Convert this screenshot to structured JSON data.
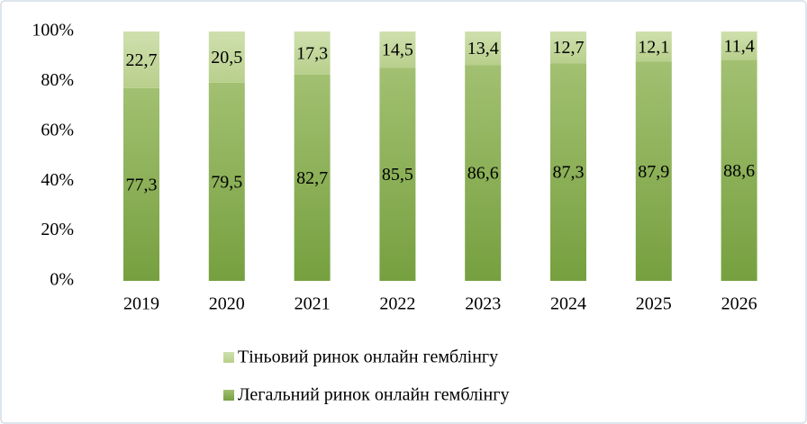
{
  "chart_data": {
    "type": "stacked_bar",
    "categories": [
      "2019",
      "2020",
      "2021",
      "2022",
      "2023",
      "2024",
      "2025",
      "2026"
    ],
    "series": [
      {
        "name": "Легальний ринок онлайн гемблінгу",
        "color": "#84a94f",
        "values": [
          77.3,
          79.5,
          82.7,
          85.5,
          86.6,
          87.3,
          87.9,
          88.6
        ],
        "value_labels": [
          "77,3",
          "79,5",
          "82,7",
          "85,5",
          "86,6",
          "87,3",
          "87,9",
          "88,6"
        ]
      },
      {
        "name": "Тіньовий ринок онлайн гемблінгу",
        "color": "#c3d69b",
        "values": [
          22.7,
          20.5,
          17.3,
          14.5,
          13.4,
          12.7,
          12.1,
          11.4
        ],
        "value_labels": [
          "22,7",
          "20,5",
          "17,3",
          "14,5",
          "13,4",
          "12,7",
          "12,1",
          "11,4"
        ]
      }
    ],
    "ylim": [
      0,
      100
    ],
    "yticks": [
      {
        "value": 0,
        "label": "0%"
      },
      {
        "value": 20,
        "label": "20%"
      },
      {
        "value": 40,
        "label": "40%"
      },
      {
        "value": 60,
        "label": "60%"
      },
      {
        "value": 80,
        "label": "80%"
      },
      {
        "value": 100,
        "label": "100%"
      }
    ],
    "grid": false,
    "legend": "bottom"
  }
}
